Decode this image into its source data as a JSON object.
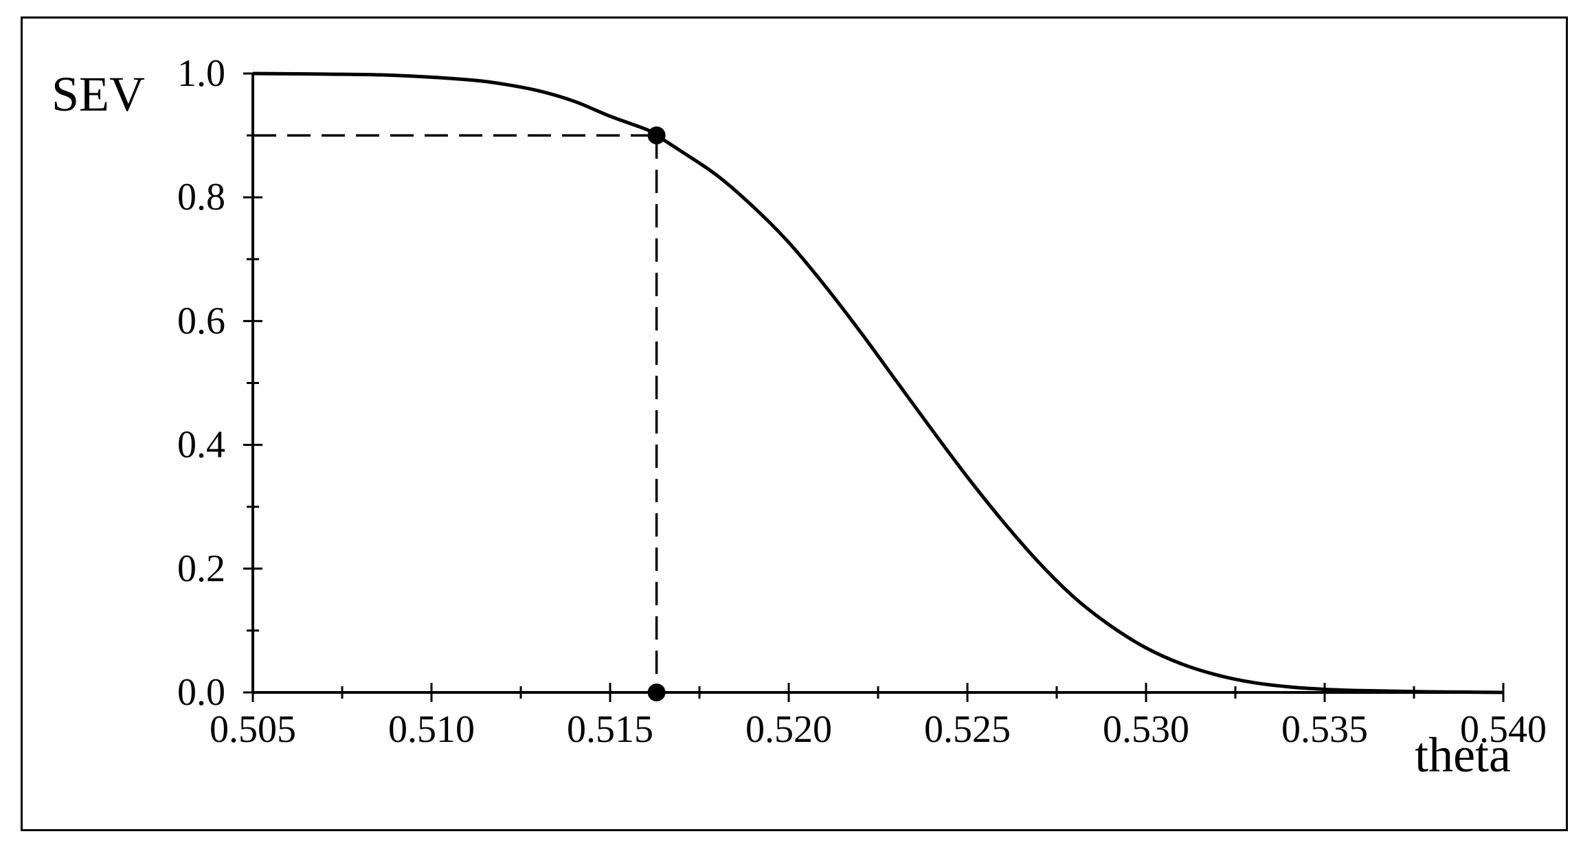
{
  "chart_data": {
    "type": "line",
    "title": "",
    "xlabel": "theta",
    "ylabel": "SEV",
    "xlim": [
      0.505,
      0.54
    ],
    "ylim": [
      0.0,
      1.0
    ],
    "x_ticks": [
      0.505,
      0.51,
      0.515,
      0.52,
      0.525,
      0.53,
      0.535,
      0.54
    ],
    "x_tick_labels": [
      "0.505",
      "0.510",
      "0.515",
      "0.520",
      "0.525",
      "0.530",
      "0.535",
      "0.540"
    ],
    "y_ticks": [
      0.0,
      0.2,
      0.4,
      0.6,
      0.8,
      1.0
    ],
    "y_tick_labels": [
      "0.0",
      "0.2",
      "0.4",
      "0.6",
      "0.8",
      "1.0"
    ],
    "grid": false,
    "legend": "none",
    "series": [
      {
        "x": [
          0.505,
          0.507,
          0.509,
          0.511,
          0.512,
          0.513,
          0.514,
          0.515,
          0.516,
          0.5163,
          0.517,
          0.518,
          0.519,
          0.52,
          0.521,
          0.522,
          0.523,
          0.524,
          0.525,
          0.526,
          0.527,
          0.528,
          0.529,
          0.53,
          0.531,
          0.532,
          0.533,
          0.534,
          0.535,
          0.536,
          0.537,
          0.538,
          0.54
        ],
        "values": [
          1.0,
          0.999,
          0.997,
          0.99,
          0.983,
          0.972,
          0.955,
          0.931,
          0.91,
          0.9,
          0.874,
          0.835,
          0.785,
          0.727,
          0.658,
          0.583,
          0.504,
          0.425,
          0.348,
          0.276,
          0.21,
          0.153,
          0.108,
          0.072,
          0.046,
          0.028,
          0.016,
          0.009,
          0.005,
          0.003,
          0.002,
          0.001,
          0.0
        ]
      }
    ],
    "annotations": {
      "highlight_point": {
        "x": 0.5163,
        "y": 0.9
      },
      "dashed_reference_lines": true
    },
    "colors": {
      "line": "#000000",
      "background": "#ffffff"
    }
  }
}
